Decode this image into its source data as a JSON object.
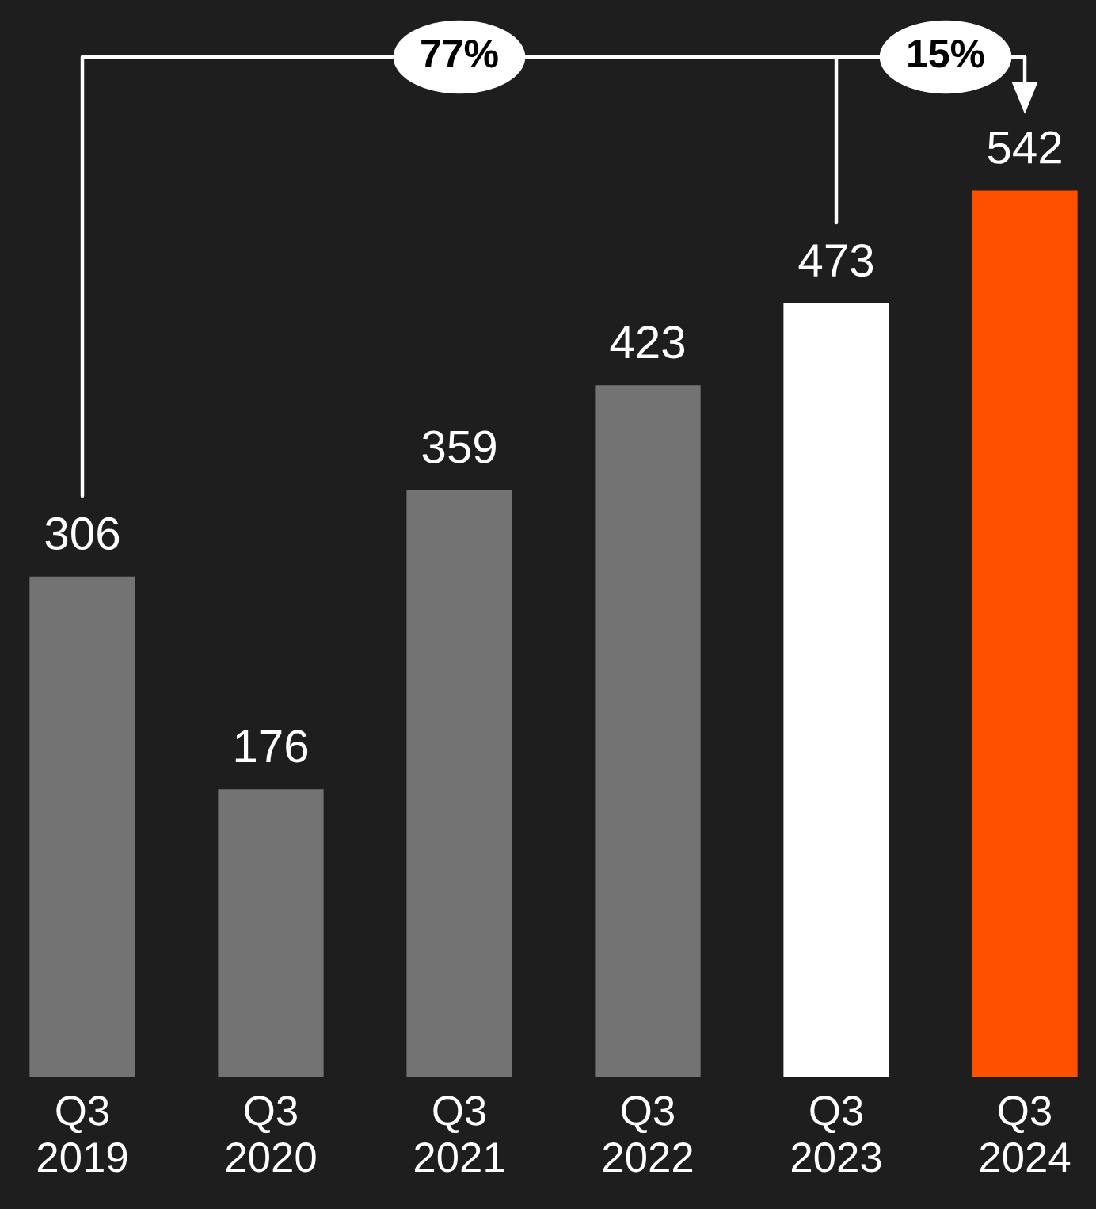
{
  "chart_data": {
    "type": "bar",
    "categories": [
      "Q3\n2019",
      "Q3\n2020",
      "Q3\n2021",
      "Q3\n2022",
      "Q3\n2023",
      "Q3\n2024"
    ],
    "values": [
      306,
      176,
      359,
      423,
      473,
      542
    ],
    "colors": [
      "#737373",
      "#737373",
      "#737373",
      "#737373",
      "#ffffff",
      "#ff5000"
    ],
    "data_labels": true,
    "annotations": [
      "77%",
      "15%"
    ]
  }
}
